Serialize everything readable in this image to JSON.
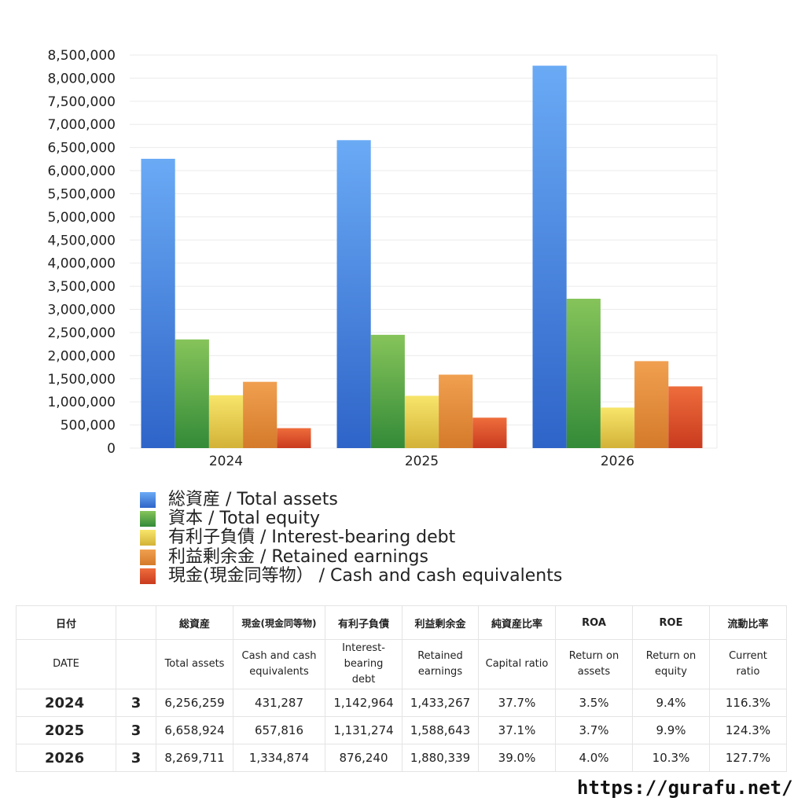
{
  "chart_data": {
    "type": "bar",
    "categories": [
      "2024",
      "2025",
      "2026"
    ],
    "ylim": [
      0,
      8500000
    ],
    "ytick_step": 500000,
    "grid": true,
    "legend_position": "bottom",
    "series": [
      {
        "name": "総資産 / Total assets",
        "color_top": "#6aaaf5",
        "color_bottom": "#2e64c8",
        "values": [
          6256259,
          6658924,
          8269711
        ]
      },
      {
        "name": "資本 / Total equity",
        "color_top": "#86c45a",
        "color_bottom": "#338a38",
        "values": [
          2350000,
          2450000,
          3230000
        ]
      },
      {
        "name": "有利子負債 / Interest-bearing debt",
        "color_top": "#f7e56a",
        "color_bottom": "#d3b238",
        "values": [
          1142964,
          1131274,
          876240
        ]
      },
      {
        "name": "利益剰余金 / Retained earnings",
        "color_top": "#f0a050",
        "color_bottom": "#d47a2a",
        "values": [
          1433267,
          1588643,
          1880339
        ]
      },
      {
        "name": "現金(現金同等物）  /  Cash and cash equivalents",
        "color_top": "#ee6d3c",
        "color_bottom": "#c93a1e",
        "values": [
          431287,
          657816,
          1334874
        ]
      }
    ]
  },
  "table": {
    "headers_ja": [
      "日付",
      "",
      "総資産",
      "現金(現金同等物)",
      "有利子負債",
      "利益剰余金",
      "純資産比率",
      "ROA",
      "ROE",
      "流動比率"
    ],
    "headers_en": [
      "DATE",
      "",
      "Total assets",
      "Cash and cash equivalents",
      "Interest-bearing debt",
      "Retained earnings",
      "Capital ratio",
      "Return on assets",
      "Return on equity",
      "Current ratio"
    ],
    "rows": [
      [
        "2024",
        "3",
        "6,256,259",
        "431,287",
        "1,142,964",
        "1,433,267",
        "37.7%",
        "3.5%",
        "9.4%",
        "116.3%"
      ],
      [
        "2025",
        "3",
        "6,658,924",
        "657,816",
        "1,131,274",
        "1,588,643",
        "37.1%",
        "3.7%",
        "9.9%",
        "124.3%"
      ],
      [
        "2026",
        "3",
        "8,269,711",
        "1,334,874",
        "876,240",
        "1,880,339",
        "39.0%",
        "4.0%",
        "10.3%",
        "127.7%"
      ]
    ]
  },
  "footer": {
    "url": "https://gurafu.net/"
  }
}
